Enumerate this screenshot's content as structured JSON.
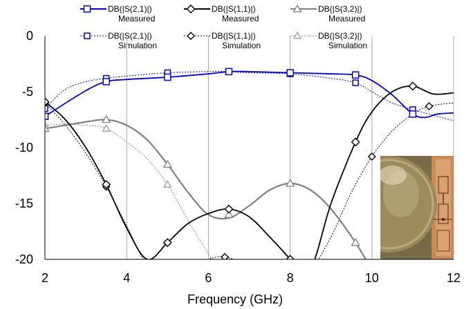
{
  "chart_data": {
    "type": "line",
    "xlabel": "Frequency (GHz)",
    "ylabel": "",
    "xlim": [
      2,
      12
    ],
    "ylim": [
      -20,
      0
    ],
    "x_ticks": [
      2,
      4,
      6,
      8,
      10,
      12
    ],
    "y_ticks": [
      0,
      -5,
      -10,
      -15,
      -20
    ],
    "x_tick_labels": [
      "2",
      "4",
      "6",
      "8",
      "10",
      "12"
    ],
    "y_tick_labels": [
      "0",
      "-5",
      "-10",
      "-15",
      "-20"
    ],
    "grid": "vertical",
    "legend_placement": "top",
    "series": [
      {
        "name": "DB(|S(2,1)|) Measured",
        "label_line1": "DB(|S(2,1)|)",
        "label_line2": "Measured",
        "color": "#0000cc",
        "line_style": "solid",
        "marker": "square",
        "marker_fill": "none",
        "x": [
          2,
          3,
          3.5,
          4,
          5,
          6,
          6.5,
          7,
          8,
          9,
          9.6,
          10,
          10.5,
          11,
          11.3,
          11.6,
          12
        ],
        "y": [
          -7.2,
          -4.9,
          -4.1,
          -3.9,
          -3.7,
          -3.4,
          -3.2,
          -3.2,
          -3.3,
          -3.4,
          -3.5,
          -4.0,
          -5.3,
          -7.0,
          -7.3,
          -7.0,
          -6.9
        ],
        "marker_x": [
          2,
          3.5,
          5,
          6.5,
          8,
          9.6,
          11
        ],
        "marker_y": [
          -7.2,
          -4.1,
          -3.7,
          -3.2,
          -3.3,
          -3.5,
          -7.0
        ]
      },
      {
        "name": "DB(|S(1,1)|) Measured",
        "label_line1": "DB(|S(1,1)|)",
        "label_line2": "Measured",
        "color": "#000000",
        "line_style": "solid",
        "marker": "diamond",
        "marker_fill": "none",
        "x": [
          2,
          2.5,
          3,
          3.5,
          4,
          4.5,
          5,
          5.5,
          6,
          6.5,
          7,
          7.5,
          8,
          8.3,
          8.6,
          9,
          9.6,
          10,
          10.5,
          11,
          11.5,
          12
        ],
        "y": [
          -5.9,
          -7.5,
          -10.0,
          -13.3,
          -17.2,
          -20.0,
          -18.5,
          -16.8,
          -15.9,
          -15.5,
          -16.2,
          -18.0,
          -20.0,
          -21.5,
          -20.0,
          -15.0,
          -9.5,
          -6.8,
          -5.0,
          -4.5,
          -5.2,
          -5.1
        ],
        "marker_x": [
          2,
          3.5,
          5,
          6.5,
          8,
          9.6,
          11
        ],
        "marker_y": [
          -5.9,
          -13.3,
          -18.5,
          -15.5,
          -20.0,
          -9.5,
          -4.5
        ]
      },
      {
        "name": "DB(|S(3,2)|) Measured",
        "label_line1": "DB(|S(3,2)|)",
        "label_line2": "Measured",
        "color": "#808080",
        "line_style": "solid",
        "marker": "triangle",
        "marker_fill": "none",
        "x": [
          2,
          2.5,
          3,
          3.5,
          4,
          4.5,
          5,
          5.5,
          6,
          6.5,
          7,
          7.5,
          8,
          8.5,
          9,
          9.6,
          10
        ],
        "y": [
          -8.3,
          -8.0,
          -7.7,
          -7.5,
          -8.0,
          -9.3,
          -11.5,
          -14.0,
          -16.0,
          -16.3,
          -15.2,
          -13.8,
          -13.2,
          -13.8,
          -15.5,
          -18.5,
          -21.0
        ],
        "marker_x": [
          2,
          3.5,
          5,
          6.5,
          8,
          9.6
        ],
        "marker_y": [
          -8.3,
          -7.5,
          -11.5,
          -16.0,
          -13.2,
          -18.5
        ]
      },
      {
        "name": "DB(|S(2,1)|) Simulation",
        "label_line1": "DB(|S(2,1)|)",
        "label_line2": "Simulation",
        "color": "#0000cc",
        "line_style": "dotted",
        "marker": "square",
        "marker_fill": "none",
        "x": [
          2,
          2.5,
          3,
          3.5,
          4,
          5,
          6,
          6.5,
          7,
          8,
          9,
          9.6,
          10,
          10.5,
          11,
          11.5,
          12
        ],
        "y": [
          -6.5,
          -4.8,
          -4.1,
          -3.8,
          -3.6,
          -3.3,
          -3.2,
          -3.2,
          -3.3,
          -3.4,
          -3.8,
          -4.2,
          -5.0,
          -6.0,
          -6.6,
          -7.1,
          -7.6
        ],
        "marker_x": [
          2,
          3.5,
          5,
          6.5,
          8,
          9.6,
          11
        ],
        "marker_y": [
          -6.5,
          -3.8,
          -3.3,
          -3.2,
          -3.4,
          -4.2,
          -6.6
        ]
      },
      {
        "name": "DB(|S(1,1)|) Simulation",
        "label_line1": "DB(|S(1,1)|)",
        "label_line2": "Simulation",
        "color": "#000000",
        "line_style": "dotted",
        "marker": "diamond",
        "marker_fill": "none",
        "x": [
          2,
          2.5,
          3,
          3.5,
          4,
          4.5,
          5,
          5.5,
          6,
          6.4,
          7,
          7.5,
          8,
          8.5,
          9,
          9.5,
          10,
          10.5,
          11,
          11.4,
          12
        ],
        "y": [
          -6.0,
          -8.0,
          -10.5,
          -13.5,
          -17.0,
          -20.5,
          -21.5,
          -21.0,
          -20.0,
          -19.8,
          -20.5,
          -21.5,
          -22.5,
          -21.0,
          -18.0,
          -14.0,
          -10.8,
          -8.5,
          -7.0,
          -6.3,
          -6.0
        ],
        "marker_x": [
          2,
          3.5,
          6.4,
          10,
          11.4
        ],
        "marker_y": [
          -6.0,
          -13.5,
          -19.8,
          -10.8,
          -6.3
        ]
      },
      {
        "name": "DB(|S(3,2)|) Simulation",
        "label_line1": "DB(|S(3,2)|)",
        "label_line2": "Simulation",
        "color": "#808080",
        "line_style": "dotted",
        "marker": "triangle",
        "marker_fill": "none",
        "x": [
          2,
          2.5,
          3,
          3.5,
          4,
          4.5,
          5,
          5.5,
          6,
          6.5
        ],
        "y": [
          -8.0,
          -7.9,
          -8.0,
          -8.3,
          -9.5,
          -11.0,
          -13.3,
          -16.5,
          -19.5,
          -22.0
        ],
        "marker_x": [
          2,
          3.5,
          5
        ],
        "marker_y": [
          -8.0,
          -8.3,
          -13.3
        ]
      }
    ]
  },
  "inset_photo": {
    "description_icon": "coin-and-circuit-photo",
    "colors": {
      "coin": "#9c8a5a",
      "coin_light": "#c8b98c",
      "board": "#c88a58",
      "board_light": "#e6b488",
      "trace": "#8a4a22"
    }
  }
}
